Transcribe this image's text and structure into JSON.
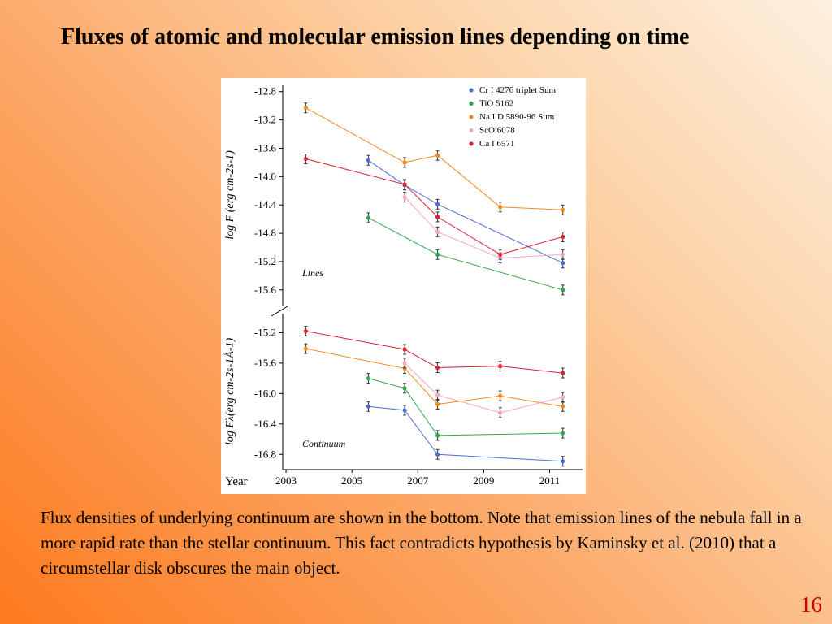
{
  "title": "Fluxes of atomic and molecular emission lines depending on time",
  "caption": "Flux densities of underlying continuum are shown in the bottom. Note that emission lines of the nebula fall in a more rapid rate than the stellar continuum. This fact contradicts hypothesis by Kaminsky et al. (2010)  that a circumstellar disk obscures the main object.",
  "page_number": "16",
  "chart_data": {
    "type": "line",
    "xlabel": "Year",
    "xlim": [
      2002.9,
      2011.9
    ],
    "xticks": [
      "2003",
      "2005",
      "2007",
      "2009",
      "2011"
    ],
    "panels": [
      {
        "label": "Lines",
        "ylabel": "log F (erg cm-2s-1)",
        "ylim": [
          -15.82,
          -12.7
        ],
        "yticks": [
          "-12.8",
          "-13.2",
          "-13.6",
          "-14.0",
          "-14.4",
          "-14.8",
          "-15.2",
          "-15.6"
        ],
        "series": [
          {
            "name": "Cr I 4276 triplet Sum",
            "color": "#4a6fd8",
            "points": [
              [
                2005.5,
                -13.77
              ],
              [
                2006.6,
                -14.12
              ],
              [
                2007.6,
                -14.39
              ],
              [
                2011.4,
                -15.22
              ]
            ]
          },
          {
            "name": "TiO 5162",
            "color": "#2ea84a",
            "points": [
              [
                2005.5,
                -14.58
              ],
              [
                2007.6,
                -15.1
              ],
              [
                2011.4,
                -15.6
              ]
            ]
          },
          {
            "name": "Na I D 5890-96 Sum",
            "color": "#f5891e",
            "points": [
              [
                2003.6,
                -13.03
              ],
              [
                2006.6,
                -13.8
              ],
              [
                2007.6,
                -13.7
              ],
              [
                2009.5,
                -14.43
              ],
              [
                2011.4,
                -14.47
              ]
            ]
          },
          {
            "name": "ScO 6078",
            "color": "#f7a6bd",
            "points": [
              [
                2006.6,
                -14.29
              ],
              [
                2007.6,
                -14.78
              ],
              [
                2009.5,
                -15.15
              ],
              [
                2011.4,
                -15.1
              ]
            ]
          },
          {
            "name": "Ca I 6571",
            "color": "#dd2035",
            "points": [
              [
                2003.6,
                -13.75
              ],
              [
                2006.6,
                -14.11
              ],
              [
                2007.6,
                -14.57
              ],
              [
                2009.5,
                -15.1
              ],
              [
                2011.4,
                -14.85
              ]
            ]
          }
        ]
      },
      {
        "label": "Continuum",
        "ylabel": "log Fλ(erg cm-2s-1Å-1)",
        "ylim": [
          -17.0,
          -14.95
        ],
        "yticks": [
          "-15.2",
          "-15.6",
          "-16.0",
          "-16.4",
          "-16.8"
        ],
        "series": [
          {
            "name": "Cr I 4276 triplet Sum",
            "color": "#4a6fd8",
            "points": [
              [
                2005.5,
                -16.17
              ],
              [
                2006.6,
                -16.22
              ],
              [
                2007.6,
                -16.8
              ],
              [
                2011.4,
                -16.89
              ]
            ]
          },
          {
            "name": "TiO 5162",
            "color": "#2ea84a",
            "points": [
              [
                2005.5,
                -15.8
              ],
              [
                2006.6,
                -15.93
              ],
              [
                2007.6,
                -16.55
              ],
              [
                2011.4,
                -16.52
              ]
            ]
          },
          {
            "name": "Na I D 5890-96 Sum",
            "color": "#f5891e",
            "points": [
              [
                2003.6,
                -15.41
              ],
              [
                2006.6,
                -15.67
              ],
              [
                2007.6,
                -16.14
              ],
              [
                2009.5,
                -16.03
              ],
              [
                2011.4,
                -16.17
              ]
            ]
          },
          {
            "name": "ScO 6078",
            "color": "#f7a6bd",
            "points": [
              [
                2006.6,
                -15.6
              ],
              [
                2007.6,
                -16.02
              ],
              [
                2009.5,
                -16.25
              ],
              [
                2011.4,
                -16.05
              ]
            ]
          },
          {
            "name": "Ca I 6571",
            "color": "#dd2035",
            "points": [
              [
                2003.6,
                -15.18
              ],
              [
                2006.6,
                -15.42
              ],
              [
                2007.6,
                -15.66
              ],
              [
                2009.5,
                -15.64
              ],
              [
                2011.4,
                -15.73
              ]
            ]
          }
        ]
      }
    ],
    "legend": "top-right"
  }
}
